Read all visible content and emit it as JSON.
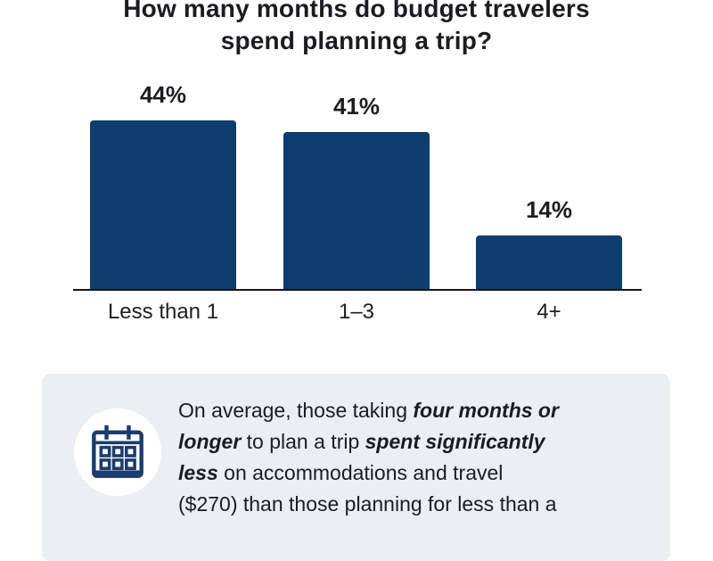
{
  "title": {
    "line1": "How many months do budget travelers",
    "line2": "spend planning a trip?"
  },
  "chart_data": {
    "type": "bar",
    "title": "How many months do budget travelers spend planning a trip?",
    "categories": [
      "Less than 1",
      "1–3",
      "4+"
    ],
    "values": [
      44,
      41,
      14
    ],
    "value_labels": [
      "44%",
      "41%",
      "14%"
    ],
    "xlabel": "",
    "ylabel": "",
    "ylim": [
      0,
      50
    ],
    "grid": false,
    "legend": "none",
    "bar_color": "#0e3d6e",
    "axis_line_color": "#15161a"
  },
  "callout": {
    "background": "#ebeff3",
    "icon": "calendar-icon",
    "icon_color": "#1d3c6d",
    "text_plain": "On average, those taking four months or longer to plan a trip spent significantly less on accommodations and travel ($270) than those planning for less than a",
    "lines": [
      [
        {
          "t": "On average, those taking ",
          "bi": false
        },
        {
          "t": "four months or",
          "bi": true
        }
      ],
      [
        {
          "t": "longer",
          "bi": true
        },
        {
          "t": " to plan a trip ",
          "bi": false
        },
        {
          "t": "spent significantly",
          "bi": true
        }
      ],
      [
        {
          "t": "less",
          "bi": true
        },
        {
          "t": " on accommodations and travel",
          "bi": false
        }
      ],
      [
        {
          "t": "($270) than those planning for less than a",
          "bi": false
        }
      ]
    ]
  }
}
